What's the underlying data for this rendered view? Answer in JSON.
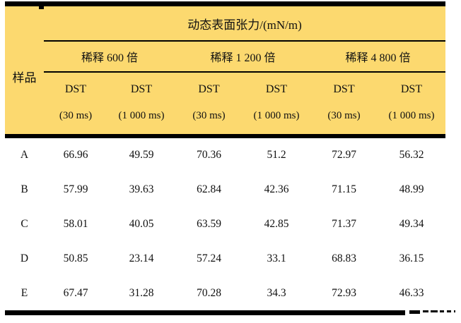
{
  "colors": {
    "header_background": "#FCD96F",
    "rule": "#000000",
    "text": "#111111"
  },
  "table": {
    "header": {
      "sample_label": "样品",
      "title": "动态表面张力/(mN/m)",
      "groups": [
        {
          "label": "稀释 600 倍"
        },
        {
          "label": "稀释 1 200 倍"
        },
        {
          "label": "稀释 4 800 倍"
        }
      ],
      "columns": [
        {
          "dst": "DST",
          "time": "(30 ms)"
        },
        {
          "dst": "DST",
          "time": "(1 000 ms)"
        },
        {
          "dst": "DST",
          "time": "(30 ms)"
        },
        {
          "dst": "DST",
          "time": "(1 000 ms)"
        },
        {
          "dst": "DST",
          "time": "(30 ms)"
        },
        {
          "dst": "DST",
          "time": "(1 000 ms)"
        }
      ]
    },
    "rows": [
      {
        "sample": "A",
        "values": [
          "66.96",
          "49.59",
          "70.36",
          "51.2",
          "72.97",
          "56.32"
        ]
      },
      {
        "sample": "B",
        "values": [
          "57.99",
          "39.63",
          "62.84",
          "42.36",
          "71.15",
          "48.99"
        ]
      },
      {
        "sample": "C",
        "values": [
          "58.01",
          "40.05",
          "63.59",
          "42.85",
          "71.37",
          "49.34"
        ]
      },
      {
        "sample": "D",
        "values": [
          "50.85",
          "23.14",
          "57.24",
          "33.1",
          "68.83",
          "36.15"
        ]
      },
      {
        "sample": "E",
        "values": [
          "67.47",
          "31.28",
          "70.28",
          "34.3",
          "72.93",
          "46.33"
        ]
      }
    ]
  }
}
